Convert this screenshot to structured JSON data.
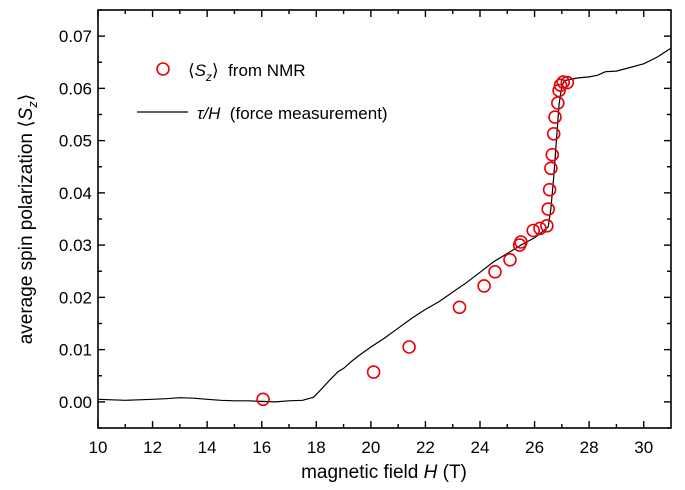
{
  "chart_data": {
    "type": "scatter",
    "xlabel_prefix": "magnetic field ",
    "xlabel_var": "H",
    "xlabel_unit": " (T)",
    "ylabel_text": "average spin polarization",
    "ylabel_symbol": "S",
    "ylabel_subscript": "z",
    "xlim": [
      10,
      31
    ],
    "ylim": [
      -0.005,
      0.075
    ],
    "x_ticks": [
      {
        "value": 10,
        "label": "10"
      },
      {
        "value": 12,
        "label": "12"
      },
      {
        "value": 14,
        "label": "14"
      },
      {
        "value": 16,
        "label": "16"
      },
      {
        "value": 18,
        "label": "18"
      },
      {
        "value": 20,
        "label": "20"
      },
      {
        "value": 22,
        "label": "22"
      },
      {
        "value": 24,
        "label": "24"
      },
      {
        "value": 26,
        "label": "26"
      },
      {
        "value": 28,
        "label": "28"
      },
      {
        "value": 30,
        "label": "30"
      }
    ],
    "y_ticks": [
      {
        "value": 0.0,
        "label": "0.00"
      },
      {
        "value": 0.01,
        "label": "0.01"
      },
      {
        "value": 0.02,
        "label": "0.02"
      },
      {
        "value": 0.03,
        "label": "0.03"
      },
      {
        "value": 0.04,
        "label": "0.04"
      },
      {
        "value": 0.05,
        "label": "0.05"
      },
      {
        "value": 0.06,
        "label": "0.06"
      },
      {
        "value": 0.07,
        "label": "0.07"
      }
    ],
    "legend_position": "top-left",
    "series": [
      {
        "name": "⟨Sz⟩ from NMR",
        "legend_symbol": "S",
        "legend_subscript": "z",
        "legend_suffix": "  from NMR",
        "kind": "scatter",
        "marker": "open-circle",
        "color": "#e8000b",
        "x": [
          16.05,
          20.1,
          21.4,
          23.25,
          24.15,
          24.55,
          25.1,
          25.45,
          25.5,
          25.95,
          26.2,
          26.45,
          26.5,
          26.55,
          26.6,
          26.65,
          26.7,
          26.75,
          26.85,
          26.9,
          26.95,
          27.05,
          27.2
        ],
        "y": [
          0.0005,
          0.0057,
          0.0105,
          0.0181,
          0.0222,
          0.0249,
          0.0272,
          0.03,
          0.0306,
          0.0328,
          0.0332,
          0.0337,
          0.0369,
          0.0406,
          0.0447,
          0.0473,
          0.0513,
          0.0545,
          0.0572,
          0.0596,
          0.0606,
          0.0612,
          0.0611
        ]
      },
      {
        "name": "τ/H (force measurement)",
        "legend_symbol_a": "τ",
        "legend_symbol_b": "/H",
        "legend_suffix": "  (force measurement)",
        "kind": "line",
        "color": "#000000",
        "x": [
          10.0,
          10.5,
          11.0,
          11.5,
          12.0,
          12.5,
          13.0,
          13.5,
          14.0,
          14.5,
          15.0,
          15.5,
          16.0,
          16.5,
          17.0,
          17.5,
          17.9,
          18.2,
          18.5,
          18.8,
          19.0,
          19.3,
          19.6,
          20.0,
          20.5,
          21.0,
          21.5,
          22.0,
          22.5,
          23.0,
          23.5,
          24.0,
          24.5,
          25.0,
          25.5,
          26.0,
          26.3,
          26.5,
          26.6,
          26.7,
          26.8,
          26.9,
          27.0,
          27.1,
          27.3,
          27.6,
          28.0,
          28.3,
          28.6,
          29.0,
          29.5,
          30.0,
          30.5,
          31.0
        ],
        "y": [
          0.0005,
          0.0004,
          0.0003,
          0.0004,
          0.0005,
          0.0006,
          0.0008,
          0.0007,
          0.0005,
          0.0003,
          0.0002,
          0.0002,
          0.0001,
          0.0,
          0.0002,
          0.0003,
          0.0009,
          0.0025,
          0.0042,
          0.0058,
          0.0064,
          0.0078,
          0.009,
          0.0105,
          0.0122,
          0.0141,
          0.016,
          0.0177,
          0.0192,
          0.021,
          0.0228,
          0.0248,
          0.0268,
          0.0284,
          0.03,
          0.0314,
          0.0326,
          0.0335,
          0.037,
          0.043,
          0.05,
          0.057,
          0.0605,
          0.0615,
          0.0617,
          0.062,
          0.0622,
          0.0625,
          0.0632,
          0.0633,
          0.064,
          0.0647,
          0.066,
          0.0677
        ]
      }
    ]
  }
}
